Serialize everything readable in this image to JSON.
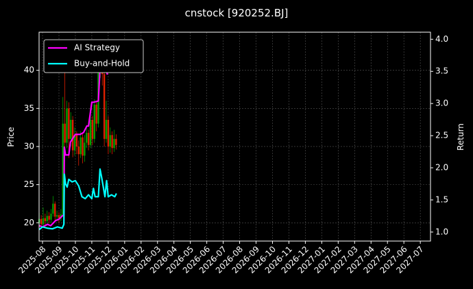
{
  "chart_data": {
    "type": "candlestick",
    "title": "cnstock [920252.BJ]",
    "ylabel": "Price",
    "y2label": "Return",
    "grid": true,
    "legend": "upper left",
    "up_color": "#00a000",
    "down_color": "#e02000",
    "xlim": [
      -0.21,
      23.62
    ],
    "xticks": [
      {
        "value": 0,
        "label": "2025-08"
      },
      {
        "value": 1,
        "label": "2025-09"
      },
      {
        "value": 2,
        "label": "2025-10"
      },
      {
        "value": 3,
        "label": "2025-11"
      },
      {
        "value": 4,
        "label": "2025-12"
      },
      {
        "value": 5,
        "label": "2026-01"
      },
      {
        "value": 6,
        "label": "2026-02"
      },
      {
        "value": 7,
        "label": "2026-03"
      },
      {
        "value": 8,
        "label": "2026-04"
      },
      {
        "value": 9,
        "label": "2026-05"
      },
      {
        "value": 10,
        "label": "2026-06"
      },
      {
        "value": 11,
        "label": "2026-07"
      },
      {
        "value": 12,
        "label": "2026-08"
      },
      {
        "value": 13,
        "label": "2026-09"
      },
      {
        "value": 14,
        "label": "2026-10"
      },
      {
        "value": 15,
        "label": "2026-11"
      },
      {
        "value": 16,
        "label": "2026-12"
      },
      {
        "value": 17,
        "label": "2027-01"
      },
      {
        "value": 18,
        "label": "2027-02"
      },
      {
        "value": 19,
        "label": "2027-03"
      },
      {
        "value": 20,
        "label": "2027-04"
      },
      {
        "value": 21,
        "label": "2027-05"
      },
      {
        "value": 22,
        "label": "2027-06"
      },
      {
        "value": 23,
        "label": "2027-07"
      }
    ],
    "ylim": [
      17.6,
      45.0
    ],
    "yticks": [
      20,
      25,
      30,
      35,
      40
    ],
    "y2lim": [
      0.86,
      4.11
    ],
    "y2ticks": [
      {
        "value": 1,
        "label": "1.0"
      },
      1.5,
      {
        "value": 2,
        "label": "2.0"
      },
      2.5,
      {
        "value": 3,
        "label": "3.0"
      },
      3.5,
      {
        "value": 4,
        "label": "4.0"
      }
    ],
    "x": [
      -0.2,
      -0.08,
      0.04,
      0.16,
      0.28,
      0.4,
      0.52,
      0.64,
      0.76,
      0.88,
      1.0,
      1.12,
      1.24,
      1.36,
      1.48,
      1.6,
      1.72,
      1.84,
      1.96,
      2.08,
      2.2,
      2.32,
      2.44,
      2.56,
      2.68,
      2.8,
      2.92,
      3.04,
      3.16,
      3.28,
      3.4,
      3.52,
      3.64,
      3.76,
      3.88,
      4.0,
      4.12,
      4.24,
      4.36,
      4.48
    ],
    "open": [
      20.0,
      20.5,
      19.8,
      20.6,
      20.2,
      20.9,
      20.4,
      21.2,
      22.5,
      20.8,
      21.0,
      20.6,
      21.1,
      33.0,
      30.5,
      35.0,
      31.0,
      33.5,
      29.5,
      31.5,
      30.0,
      29.0,
      31.2,
      28.8,
      30.5,
      31.8,
      30.2,
      33.5,
      31.0,
      35.5,
      33.0,
      40.5,
      42.0,
      39.5,
      31.0,
      33.5,
      30.0,
      31.5,
      29.8,
      31.0
    ],
    "high": [
      21.3,
      21.0,
      22.0,
      21.2,
      21.6,
      21.4,
      21.8,
      23.5,
      22.8,
      21.6,
      21.4,
      21.8,
      36.5,
      41.0,
      36.0,
      35.8,
      34.5,
      34.0,
      32.5,
      32.0,
      30.8,
      32.0,
      31.8,
      31.5,
      32.8,
      32.2,
      34.5,
      34.0,
      36.2,
      36.0,
      41.5,
      43.0,
      42.5,
      40.0,
      36.0,
      34.0,
      32.5,
      32.0,
      32.2,
      31.6
    ],
    "low": [
      19.4,
      19.2,
      19.5,
      19.6,
      19.8,
      19.9,
      20.0,
      20.8,
      20.3,
      20.2,
      20.0,
      20.2,
      20.8,
      29.5,
      29.8,
      28.5,
      30.0,
      28.6,
      28.8,
      29.0,
      27.5,
      28.5,
      27.8,
      28.0,
      29.8,
      29.5,
      29.8,
      30.2,
      30.5,
      32.0,
      32.5,
      39.0,
      38.0,
      30.0,
      30.5,
      29.0,
      29.2,
      29.0,
      29.3,
      29.6
    ],
    "close": [
      20.5,
      19.8,
      20.6,
      20.2,
      20.9,
      20.4,
      21.2,
      22.5,
      20.8,
      21.0,
      20.6,
      21.1,
      33.0,
      30.5,
      35.0,
      31.0,
      33.5,
      29.5,
      31.5,
      30.0,
      29.0,
      31.2,
      28.8,
      30.5,
      31.8,
      30.2,
      33.5,
      31.0,
      35.5,
      33.0,
      40.5,
      42.0,
      39.5,
      31.0,
      33.5,
      30.0,
      31.5,
      29.8,
      31.0,
      30.2
    ],
    "series": [
      {
        "name": "AI Strategy",
        "color": "#ff00ff",
        "axis": "y2",
        "x": [
          -0.2,
          0,
          0.3,
          0.5,
          0.8,
          1.0,
          1.2,
          1.3,
          1.33,
          1.4,
          1.6,
          1.7,
          2.0,
          2.3,
          2.5,
          2.7,
          2.8,
          3.0,
          3.1,
          3.4,
          3.5,
          3.6,
          3.7,
          3.85,
          3.95
        ],
        "values": [
          1.1,
          1.08,
          1.12,
          1.1,
          1.18,
          1.2,
          1.25,
          1.27,
          2.32,
          2.2,
          2.2,
          2.4,
          2.52,
          2.52,
          2.55,
          2.65,
          2.65,
          3.02,
          3.02,
          3.04,
          3.55,
          3.85,
          3.6,
          3.55,
          3.45
        ]
      },
      {
        "name": "Buy-and-Hold",
        "color": "#00ffff",
        "axis": "y2",
        "x": [
          -0.2,
          0,
          0.3,
          0.6,
          0.9,
          1.2,
          1.3,
          1.33,
          1.4,
          1.5,
          1.6,
          1.8,
          2.0,
          2.2,
          2.4,
          2.6,
          2.8,
          3.0,
          3.1,
          3.2,
          3.4,
          3.5,
          3.6,
          3.7,
          3.8,
          3.9,
          4.0,
          4.2,
          4.4,
          4.5
        ],
        "values": [
          1.04,
          1.08,
          1.06,
          1.05,
          1.08,
          1.06,
          1.12,
          1.9,
          1.75,
          1.7,
          1.82,
          1.78,
          1.8,
          1.72,
          1.55,
          1.52,
          1.58,
          1.52,
          1.68,
          1.55,
          1.55,
          1.98,
          1.85,
          1.7,
          1.55,
          1.8,
          1.55,
          1.58,
          1.55,
          1.6
        ]
      }
    ]
  }
}
